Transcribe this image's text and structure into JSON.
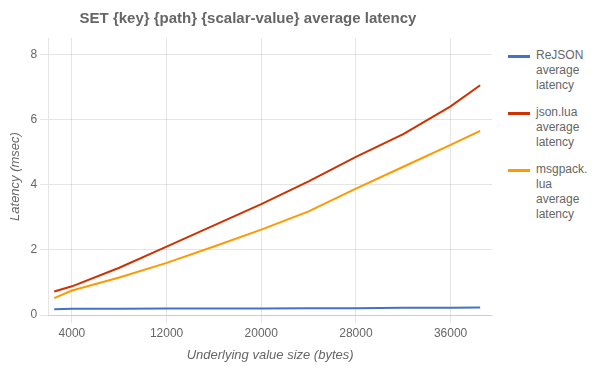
{
  "chart_data": {
    "type": "line",
    "title": "SET {key} {path} {scalar-value} average latency",
    "x_label": "Underlying value size (bytes)",
    "y_label": "Latency (msec)",
    "x": [
      2500,
      4000,
      8000,
      12000,
      16000,
      20000,
      24000,
      28000,
      32000,
      36000,
      38500
    ],
    "series": [
      {
        "name": "ReJSON\naverage\nlatency",
        "color": "#4472C4",
        "values": [
          0.18,
          0.19,
          0.19,
          0.2,
          0.2,
          0.2,
          0.21,
          0.21,
          0.22,
          0.22,
          0.23
        ]
      },
      {
        "name": "json.lua\naverage\nlatency",
        "color": "#CC3300",
        "values": [
          0.72,
          0.88,
          1.45,
          2.1,
          2.75,
          3.4,
          4.1,
          4.85,
          5.55,
          6.4,
          7.05
        ]
      },
      {
        "name": "msgpack.\nlua\naverage\nlatency",
        "color": "#FF9900",
        "values": [
          0.52,
          0.75,
          1.15,
          1.6,
          2.1,
          2.62,
          3.18,
          3.88,
          4.55,
          5.22,
          5.65
        ]
      }
    ],
    "xlim": [
      2000,
      39500
    ],
    "ylim": [
      0,
      8.5
    ],
    "xticks": [
      4000,
      12000,
      20000,
      28000,
      36000
    ],
    "yticks": [
      0,
      2,
      4,
      6,
      8
    ],
    "grid": true,
    "legend": "right"
  }
}
